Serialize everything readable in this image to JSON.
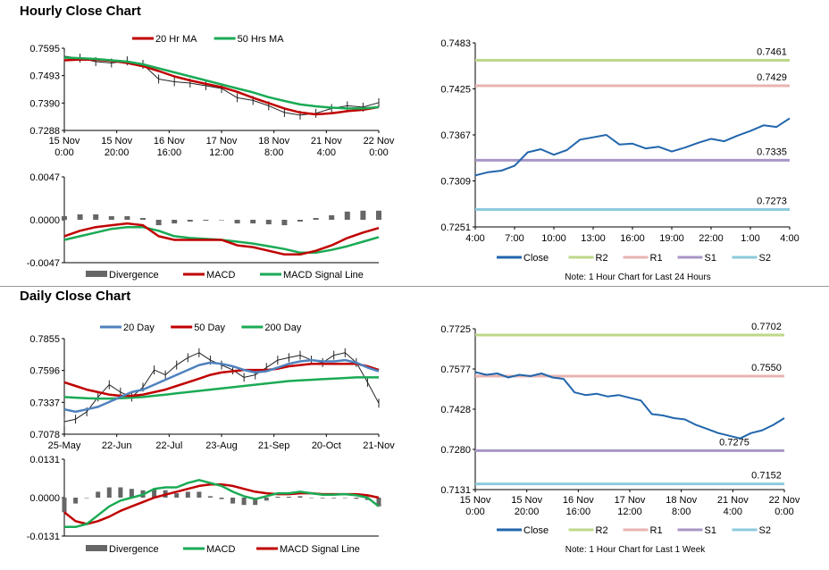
{
  "sections": {
    "hourly_title": "Hourly Close Chart",
    "daily_title": "Daily Close Chart"
  },
  "colors": {
    "ma_short": "#c00000",
    "ma_long": "#1aaa55",
    "ma_20day": "#4f81bd",
    "close": "#2166ac",
    "r2": "#bcd88a",
    "r1": "#e8b4b0",
    "s1": "#a896c6",
    "s2": "#8ccbdc",
    "divergence": "#666666"
  },
  "chart_data": [
    {
      "id": "hourly_price",
      "type": "line",
      "legend": [
        "20 Hr MA",
        "50 Hrs MA"
      ],
      "yticks": [
        "0.7595",
        "0.7493",
        "0.7390",
        "0.7288"
      ],
      "ylim": [
        0.7288,
        0.7595
      ],
      "xticks": [
        [
          "15 Nov",
          "0:00"
        ],
        [
          "15 Nov",
          "20:00"
        ],
        [
          "16 Nov",
          "16:00"
        ],
        [
          "17 Nov",
          "12:00"
        ],
        [
          "18 Nov",
          "8:00"
        ],
        [
          "21 Nov",
          "4:00"
        ],
        [
          "22 Nov",
          "0:00"
        ]
      ],
      "close": [
        0.7565,
        0.7558,
        0.7545,
        0.754,
        0.7548,
        0.7535,
        0.748,
        0.747,
        0.7465,
        0.7455,
        0.7445,
        0.741,
        0.74,
        0.738,
        0.7355,
        0.7345,
        0.7352,
        0.737,
        0.738,
        0.7375,
        0.7392
      ],
      "ma_short": [
        0.755,
        0.7553,
        0.7552,
        0.7548,
        0.754,
        0.7528,
        0.751,
        0.749,
        0.7475,
        0.7462,
        0.745,
        0.7432,
        0.741,
        0.739,
        0.737,
        0.7355,
        0.7348,
        0.7352,
        0.736,
        0.7365,
        0.7375
      ],
      "ma_long": [
        0.756,
        0.7558,
        0.7555,
        0.755,
        0.7545,
        0.7535,
        0.752,
        0.7505,
        0.749,
        0.7475,
        0.746,
        0.7445,
        0.743,
        0.7412,
        0.7398,
        0.7385,
        0.7378,
        0.7373,
        0.737,
        0.737,
        0.7375
      ]
    },
    {
      "id": "hourly_macd",
      "type": "line",
      "legend": [
        "Divergence",
        "MACD",
        "MACD Signal Line"
      ],
      "yticks": [
        "0.0047",
        "0.0000",
        "-0.0047"
      ],
      "ylim": [
        -0.0047,
        0.0047
      ],
      "macd": [
        -0.0018,
        -0.0012,
        -0.0008,
        -0.0006,
        -0.0004,
        -0.0006,
        -0.0018,
        -0.0022,
        -0.0022,
        -0.0022,
        -0.0022,
        -0.0028,
        -0.003,
        -0.0034,
        -0.0038,
        -0.0038,
        -0.0034,
        -0.0028,
        -0.002,
        -0.0014,
        -0.0009
      ],
      "signal": [
        -0.0022,
        -0.0018,
        -0.0014,
        -0.001,
        -0.0008,
        -0.0008,
        -0.0012,
        -0.0018,
        -0.002,
        -0.0021,
        -0.0022,
        -0.0024,
        -0.0026,
        -0.0029,
        -0.0032,
        -0.0036,
        -0.0036,
        -0.0033,
        -0.0029,
        -0.0024,
        -0.0019
      ],
      "divergence": [
        0.0004,
        0.0006,
        0.0006,
        0.0004,
        0.0004,
        0.0002,
        -0.0006,
        -0.0004,
        -0.0002,
        -0.0001,
        0.0,
        -0.0004,
        -0.0004,
        -0.0005,
        -0.0006,
        -0.0002,
        0.0002,
        0.0005,
        0.0009,
        0.001,
        0.001
      ]
    },
    {
      "id": "hourly_levels",
      "type": "line",
      "legend": [
        "Close",
        "R2",
        "R1",
        "S1",
        "S2"
      ],
      "note": "Note: 1 Hour Chart for Last 24 Hours",
      "yticks": [
        "0.7483",
        "0.7425",
        "0.7367",
        "0.7309",
        "0.7251"
      ],
      "ylim": [
        0.7251,
        0.7483
      ],
      "xticks": [
        "4:00",
        "7:00",
        "10:00",
        "13:00",
        "16:00",
        "19:00",
        "22:00",
        "1:00",
        "4:00"
      ],
      "levels": {
        "R2": 0.7461,
        "R1": 0.7429,
        "S1": 0.7335,
        "S2": 0.7273
      },
      "level_labels": [
        "0.7461",
        "0.7429",
        "0.7335",
        "0.7273"
      ],
      "close": [
        0.7316,
        0.732,
        0.7322,
        0.7328,
        0.7345,
        0.7349,
        0.7342,
        0.7348,
        0.7361,
        0.7364,
        0.7367,
        0.7355,
        0.7356,
        0.735,
        0.7352,
        0.7346,
        0.7351,
        0.7357,
        0.7362,
        0.7359,
        0.7366,
        0.7372,
        0.7379,
        0.7377,
        0.7388
      ]
    },
    {
      "id": "daily_price",
      "type": "line",
      "legend": [
        "20 Day",
        "50 Day",
        "200 Day"
      ],
      "yticks": [
        "0.7855",
        "0.7596",
        "0.7337",
        "0.7078"
      ],
      "ylim": [
        0.7078,
        0.7855
      ],
      "xticks": [
        "25-May",
        "22-Jun",
        "22-Jul",
        "23-Aug",
        "21-Sep",
        "20-Oct",
        "21-Nov"
      ],
      "close": [
        0.718,
        0.72,
        0.726,
        0.738,
        0.748,
        0.742,
        0.738,
        0.746,
        0.76,
        0.756,
        0.764,
        0.77,
        0.774,
        0.768,
        0.764,
        0.76,
        0.754,
        0.756,
        0.762,
        0.768,
        0.77,
        0.772,
        0.768,
        0.766,
        0.772,
        0.774,
        0.766,
        0.75,
        0.733
      ],
      "ma20": [
        0.728,
        0.726,
        0.728,
        0.73,
        0.734,
        0.738,
        0.742,
        0.744,
        0.748,
        0.752,
        0.756,
        0.76,
        0.764,
        0.766,
        0.765,
        0.763,
        0.76,
        0.758,
        0.759,
        0.762,
        0.765,
        0.767,
        0.768,
        0.767,
        0.767,
        0.768,
        0.766,
        0.762,
        0.759
      ],
      "ma50": [
        0.75,
        0.747,
        0.744,
        0.742,
        0.74,
        0.739,
        0.739,
        0.74,
        0.742,
        0.744,
        0.747,
        0.75,
        0.753,
        0.756,
        0.758,
        0.759,
        0.76,
        0.76,
        0.76,
        0.761,
        0.763,
        0.764,
        0.765,
        0.765,
        0.765,
        0.765,
        0.765,
        0.763,
        0.76
      ],
      "ma200": [
        0.738,
        0.7375,
        0.737,
        0.7368,
        0.7368,
        0.737,
        0.7375,
        0.738,
        0.739,
        0.74,
        0.741,
        0.742,
        0.743,
        0.744,
        0.745,
        0.746,
        0.747,
        0.748,
        0.749,
        0.75,
        0.751,
        0.7515,
        0.752,
        0.7525,
        0.753,
        0.7535,
        0.754,
        0.754,
        0.754
      ]
    },
    {
      "id": "daily_macd",
      "type": "line",
      "legend": [
        "Divergence",
        "MACD",
        "MACD Signal Line"
      ],
      "yticks": [
        "0.0131",
        "0.0000",
        "-0.0131"
      ],
      "ylim": [
        -0.0131,
        0.0131
      ],
      "macd": [
        -0.01,
        -0.01,
        -0.009,
        -0.006,
        -0.003,
        -0.001,
        0.0,
        0.001,
        0.003,
        0.0035,
        0.0035,
        0.005,
        0.006,
        0.005,
        0.004,
        0.002,
        0.0005,
        -0.0005,
        0.0005,
        0.0015,
        0.0015,
        0.002,
        0.0015,
        0.001,
        0.001,
        0.0012,
        0.0008,
        0.0,
        -0.003
      ],
      "signal": [
        -0.005,
        -0.008,
        -0.009,
        -0.008,
        -0.0065,
        -0.0045,
        -0.003,
        -0.0015,
        0.0,
        0.001,
        0.002,
        0.003,
        0.004,
        0.0045,
        0.0045,
        0.004,
        0.003,
        0.002,
        0.0015,
        0.0012,
        0.0012,
        0.0015,
        0.0015,
        0.0012,
        0.0012,
        0.0012,
        0.0012,
        0.0008,
        0.0
      ],
      "divergence": [
        -0.005,
        -0.002,
        0.0,
        0.002,
        0.0035,
        0.0035,
        0.003,
        0.0025,
        0.003,
        0.0025,
        0.0015,
        0.002,
        0.002,
        0.0005,
        -0.0005,
        -0.002,
        -0.0025,
        -0.0025,
        -0.001,
        0.0003,
        0.0003,
        0.0005,
        0.0,
        -0.0002,
        -0.0002,
        0.0,
        -0.0004,
        -0.0008,
        -0.003
      ]
    },
    {
      "id": "daily_levels",
      "type": "line",
      "legend": [
        "Close",
        "R2",
        "R1",
        "S1",
        "S2"
      ],
      "note": "Note: 1 Hour Chart for Last 1 Week",
      "yticks": [
        "0.7725",
        "0.7577",
        "0.7428",
        "0.7280",
        "0.7131"
      ],
      "ylim": [
        0.7131,
        0.7725
      ],
      "xticks": [
        [
          "15 Nov",
          "0:00"
        ],
        [
          "15 Nov",
          "20:00"
        ],
        [
          "16 Nov",
          "16:00"
        ],
        [
          "17 Nov",
          "12:00"
        ],
        [
          "18 Nov",
          "8:00"
        ],
        [
          "21 Nov",
          "4:00"
        ],
        [
          "22 Nov",
          "0:00"
        ]
      ],
      "levels": {
        "R2": 0.7702,
        "R1": 0.755,
        "S1": 0.7275,
        "S2": 0.7152
      },
      "level_labels": [
        "0.7702",
        "0.7550",
        "0.7275",
        "0.7152"
      ],
      "close": [
        0.7565,
        0.7555,
        0.756,
        0.7545,
        0.7555,
        0.755,
        0.756,
        0.7545,
        0.754,
        0.749,
        0.748,
        0.7485,
        0.7475,
        0.748,
        0.747,
        0.746,
        0.741,
        0.7405,
        0.7395,
        0.739,
        0.737,
        0.7355,
        0.734,
        0.733,
        0.732,
        0.734,
        0.735,
        0.737,
        0.7395
      ]
    }
  ]
}
